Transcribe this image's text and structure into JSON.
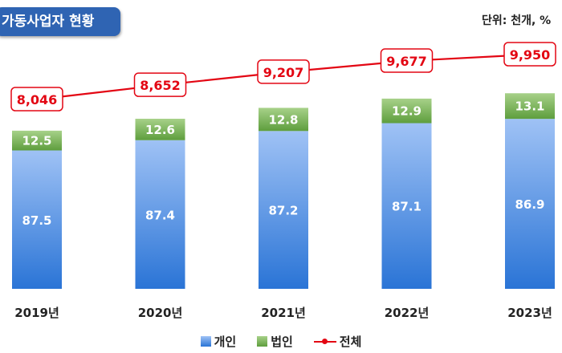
{
  "header": {
    "title": "가동사업자 현황",
    "unit": "단위: 천개, %"
  },
  "legend": {
    "individual": "개인",
    "corporate": "법인",
    "total": "전체"
  },
  "colors": {
    "individual_top": "#9fc2f5",
    "individual_bottom": "#2a74d6",
    "corporate_top": "#a7d189",
    "corporate_bottom": "#5e9e3d",
    "total_line": "#e30613"
  },
  "chart_data": {
    "type": "bar",
    "stacked": true,
    "title": "가동사업자 현황",
    "unit": "단위: 천개, %",
    "categories": [
      "2019년",
      "2020년",
      "2021년",
      "2022년",
      "2023년"
    ],
    "series": [
      {
        "name": "개인",
        "values": [
          87.5,
          87.4,
          87.2,
          87.1,
          86.9
        ]
      },
      {
        "name": "법인",
        "values": [
          12.5,
          12.6,
          12.8,
          12.9,
          13.1
        ]
      }
    ],
    "line_series": {
      "name": "전체",
      "values": [
        8046,
        8652,
        9207,
        9677,
        9950
      ],
      "labels": [
        "8,046",
        "8,652",
        "9,207",
        "9,677",
        "9,950"
      ]
    },
    "legend_position": "bottom"
  }
}
